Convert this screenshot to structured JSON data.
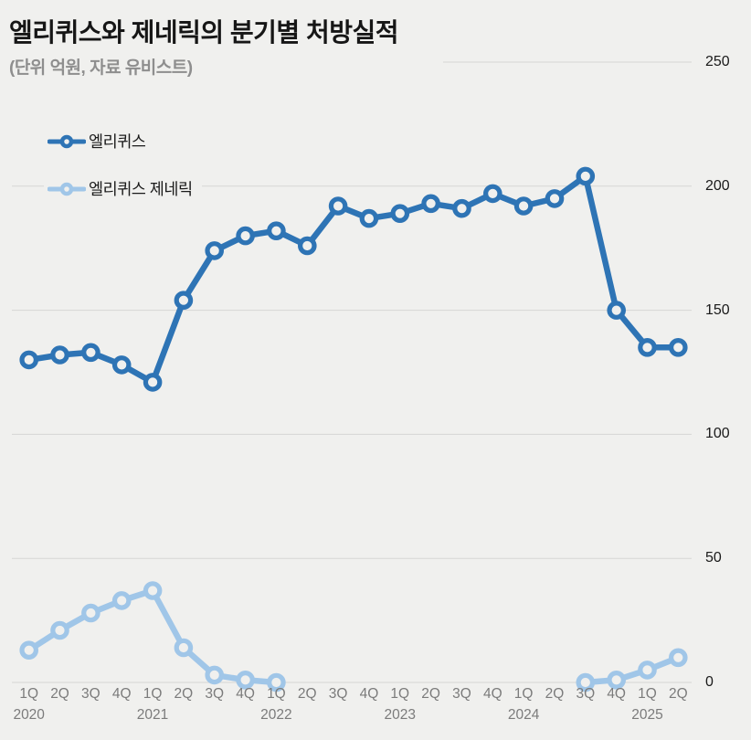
{
  "page": {
    "title": "엘리퀴스와 제네릭의 분기별 처방실적",
    "subtitle": "(단위 억원, 자료 유비스트)"
  },
  "legend": {
    "items": [
      {
        "label": "엘리퀴스",
        "color": "#2e74b5"
      },
      {
        "label": "엘리퀴스 제네릭",
        "color": "#a0c6e8"
      }
    ]
  },
  "colors": {
    "background": "#f0f0ee",
    "gridline": "#d6d6d4",
    "axis_text": "#1a1a1a",
    "x_axis_text": "#7b7b7b",
    "subtitle_text": "#8e8e8e",
    "series_primary": "#2e74b5",
    "series_secondary": "#a0c6e8"
  },
  "chart_data": {
    "type": "line",
    "title": "엘리퀴스와 제네릭의 분기별 처방실적",
    "unit_and_source_note": "(단위 억원, 자료 유비스트)",
    "categories": [
      "1Q",
      "2Q",
      "3Q",
      "4Q",
      "1Q",
      "2Q",
      "3Q",
      "4Q",
      "1Q",
      "2Q",
      "3Q",
      "4Q",
      "1Q",
      "2Q",
      "3Q",
      "4Q",
      "1Q",
      "2Q",
      "3Q",
      "4Q",
      "1Q",
      "2Q"
    ],
    "year_labels": [
      {
        "index": 0,
        "label": "2020"
      },
      {
        "index": 4,
        "label": "2021"
      },
      {
        "index": 8,
        "label": "2022"
      },
      {
        "index": 12,
        "label": "2023"
      },
      {
        "index": 16,
        "label": "2024"
      },
      {
        "index": 20,
        "label": "2025"
      }
    ],
    "series": [
      {
        "name": "엘리퀴스",
        "color": "#2e74b5",
        "values": [
          130,
          132,
          133,
          128,
          121,
          154,
          174,
          180,
          182,
          176,
          192,
          187,
          189,
          193,
          191,
          197,
          192,
          195,
          204,
          150,
          135,
          135
        ]
      },
      {
        "name": "엘리퀴스 제네릭",
        "color": "#a0c6e8",
        "values": [
          13,
          21,
          28,
          33,
          37,
          14,
          3,
          1,
          0,
          null,
          null,
          null,
          null,
          null,
          null,
          null,
          null,
          null,
          0,
          1,
          5,
          10
        ]
      }
    ],
    "ylim": [
      0,
      250
    ],
    "yticks": [
      0,
      50,
      100,
      150,
      200,
      250
    ],
    "y_axis_side": "right",
    "grid": true,
    "legend_position": "top-left"
  }
}
